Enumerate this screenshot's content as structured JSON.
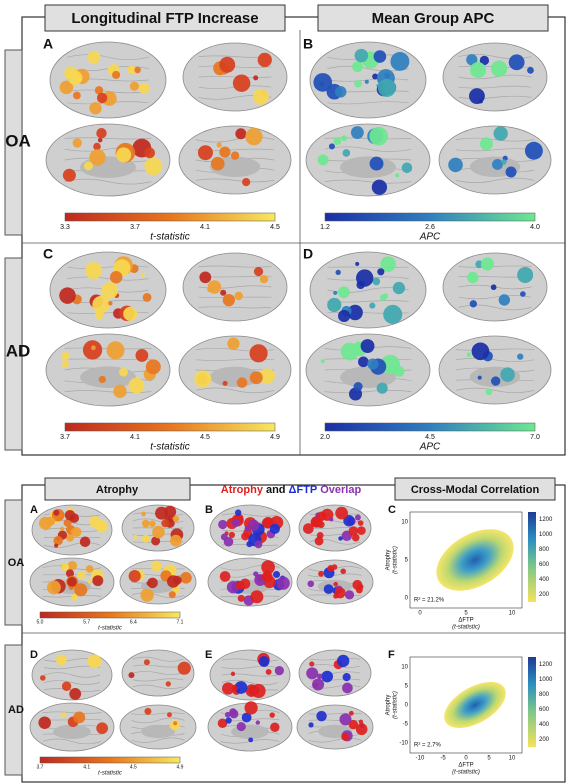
{
  "top": {
    "headers": [
      "Longitudinal FTP Increase",
      "Mean Group APC"
    ],
    "rows": [
      "OA",
      "AD"
    ],
    "panels": [
      {
        "letter": "A",
        "colorbar": {
          "ticks": [
            "3.3",
            "3.7",
            "4.1",
            "4.5"
          ],
          "label": "t-statistic"
        }
      },
      {
        "letter": "B",
        "colorbar": {
          "ticks": [
            "1.2",
            "2.6",
            "4.0"
          ],
          "label": "APC"
        }
      },
      {
        "letter": "C",
        "colorbar": {
          "ticks": [
            "3.7",
            "4.1",
            "4.5",
            "4.9"
          ],
          "label": "t-statistic"
        }
      },
      {
        "letter": "D",
        "colorbar": {
          "ticks": [
            "2.0",
            "4.5",
            "7.0"
          ],
          "label": "APC"
        }
      }
    ]
  },
  "bottom": {
    "headers": [
      "Atrophy",
      "Cross-Modal Correlation"
    ],
    "overlap_title": [
      "Atrophy",
      "and",
      "ΔFTP",
      "Overlap"
    ],
    "rows": [
      "OA",
      "AD"
    ],
    "letters": [
      "A",
      "B",
      "C",
      "D",
      "E",
      "F"
    ],
    "atrophy_colorbars": [
      {
        "ticks": [
          "5.0",
          "5.7",
          "6.4",
          "7.1"
        ],
        "label": "t-statistic"
      },
      {
        "ticks": [
          "3.7",
          "4.1",
          "4.5",
          "4.9"
        ],
        "label": "t-statistic"
      }
    ],
    "scatter": [
      {
        "r2": "R² = 21.2%",
        "xticks": [
          "0",
          "5",
          "10"
        ],
        "yticks": [
          "0",
          "5",
          "10"
        ]
      },
      {
        "r2": "R² = 2.7%",
        "xticks": [
          "-10",
          "-5",
          "0",
          "5",
          "10"
        ],
        "yticks": [
          "-10",
          "-5",
          "0",
          "5",
          "10"
        ]
      }
    ],
    "x_label": "ΔFTP",
    "y_label": "Atrophy",
    "unit": "(t-statistic)",
    "density_ticks": [
      "200",
      "400",
      "600",
      "800",
      "1000",
      "1200"
    ]
  }
}
